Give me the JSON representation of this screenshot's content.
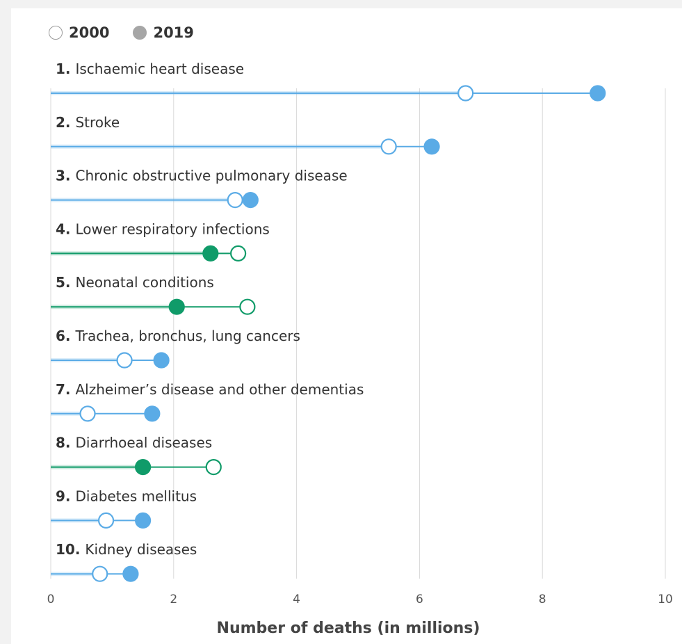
{
  "legend": [
    {
      "name": "2000",
      "style": "hollow"
    },
    {
      "name": "2019",
      "style": "filled"
    }
  ],
  "chart_data": {
    "type": "dumbbell",
    "xlabel": "Number of deaths (in millions)",
    "xlim": [
      0,
      10
    ],
    "xticks": [
      0,
      2,
      4,
      6,
      8,
      10
    ],
    "grid": "vertical",
    "legend_position": "top-left",
    "colors": {
      "increase": "#5aabe6",
      "decrease": "#109b69",
      "gridline": "#d9d9d9",
      "hollow_fill": "#ffffff",
      "legend_2019": "#a6a6a6"
    },
    "series_names": [
      "2000",
      "2019"
    ],
    "categories": [
      {
        "rank": "1.",
        "name": "Ischaemic heart disease",
        "v2000": 6.75,
        "v2019": 8.9
      },
      {
        "rank": "2.",
        "name": "Stroke",
        "v2000": 5.5,
        "v2019": 6.2
      },
      {
        "rank": "3.",
        "name": "Chronic obstructive pulmonary disease",
        "v2000": 3.0,
        "v2019": 3.25
      },
      {
        "rank": "4.",
        "name": "Lower respiratory infections",
        "v2000": 3.05,
        "v2019": 2.6
      },
      {
        "rank": "5.",
        "name": "Neonatal conditions",
        "v2000": 3.2,
        "v2019": 2.05
      },
      {
        "rank": "6.",
        "name": "Trachea, bronchus, lung cancers",
        "v2000": 1.2,
        "v2019": 1.8
      },
      {
        "rank": "7.",
        "name": "Alzheimer’s disease and other dementias",
        "v2000": 0.6,
        "v2019": 1.65
      },
      {
        "rank": "8.",
        "name": "Diarrhoeal diseases",
        "v2000": 2.65,
        "v2019": 1.5
      },
      {
        "rank": "9.",
        "name": "Diabetes mellitus",
        "v2000": 0.9,
        "v2019": 1.5
      },
      {
        "rank": "10.",
        "name": "Kidney diseases",
        "v2000": 0.8,
        "v2019": 1.3
      }
    ]
  }
}
